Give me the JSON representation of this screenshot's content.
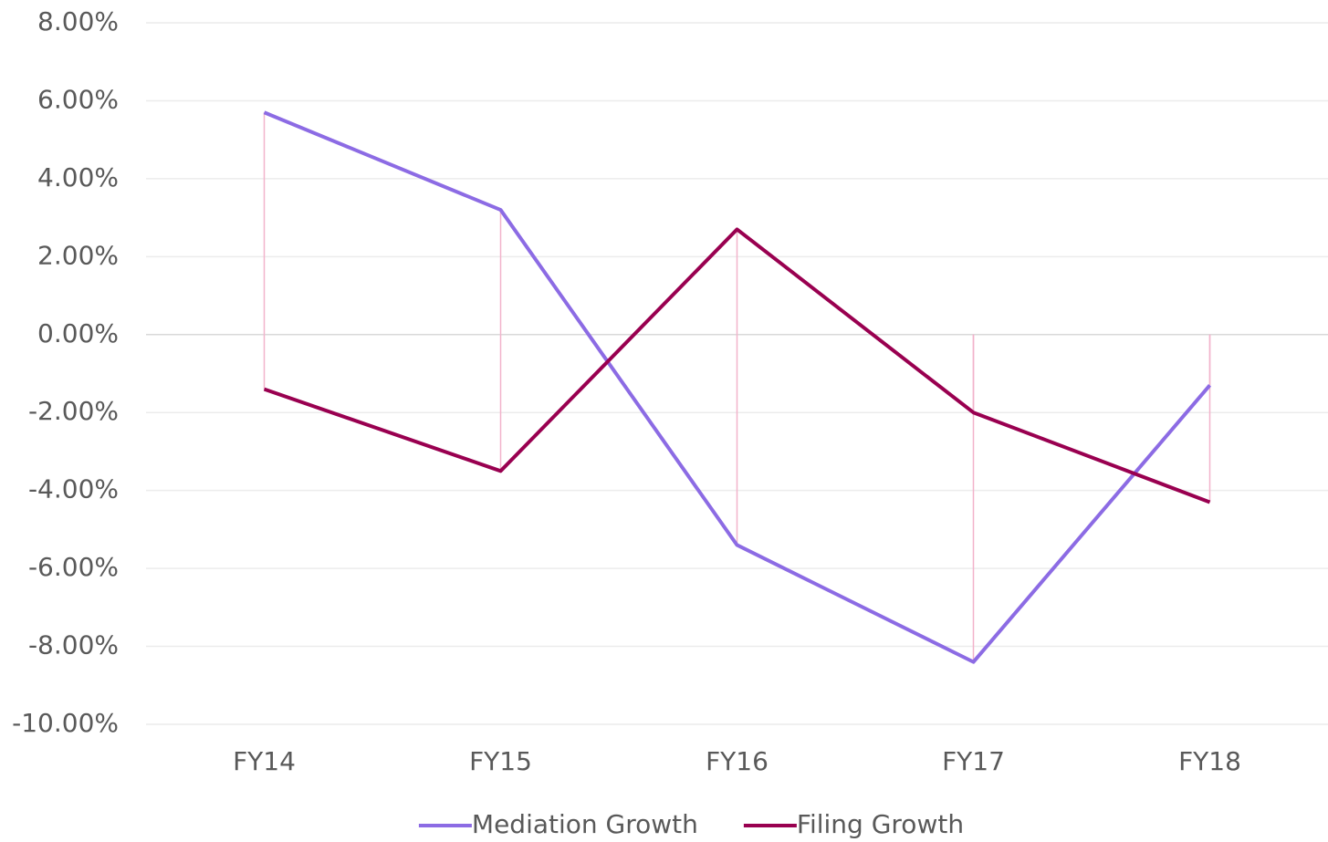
{
  "chart_data": {
    "type": "line",
    "categories": [
      "FY14",
      "FY15",
      "FY16",
      "FY17",
      "FY18"
    ],
    "series": [
      {
        "name": "Mediation Growth",
        "color": "#8c6be4",
        "values": [
          5.7,
          3.2,
          -5.4,
          -8.4,
          -1.3
        ]
      },
      {
        "name": "Filing Growth",
        "color": "#990050",
        "values": [
          -1.4,
          -3.5,
          2.7,
          -2.0,
          -4.3
        ]
      }
    ],
    "ylim": [
      -10,
      8
    ],
    "yticks": [
      {
        "value": -10,
        "label": "-10.00%"
      },
      {
        "value": -8,
        "label": "-8.00%"
      },
      {
        "value": -6,
        "label": "-6.00%"
      },
      {
        "value": -4,
        "label": "-4.00%"
      },
      {
        "value": -2,
        "label": "-2.00%"
      },
      {
        "value": 0,
        "label": "0.00%"
      },
      {
        "value": 2,
        "label": "2.00%"
      },
      {
        "value": 4,
        "label": "4.00%"
      },
      {
        "value": 6,
        "label": "6.00%"
      },
      {
        "value": 8,
        "label": "8.00%"
      }
    ],
    "grid": true,
    "drop_lines": true,
    "drop_line_color": "#f2b3cb",
    "legend": "bottom"
  }
}
